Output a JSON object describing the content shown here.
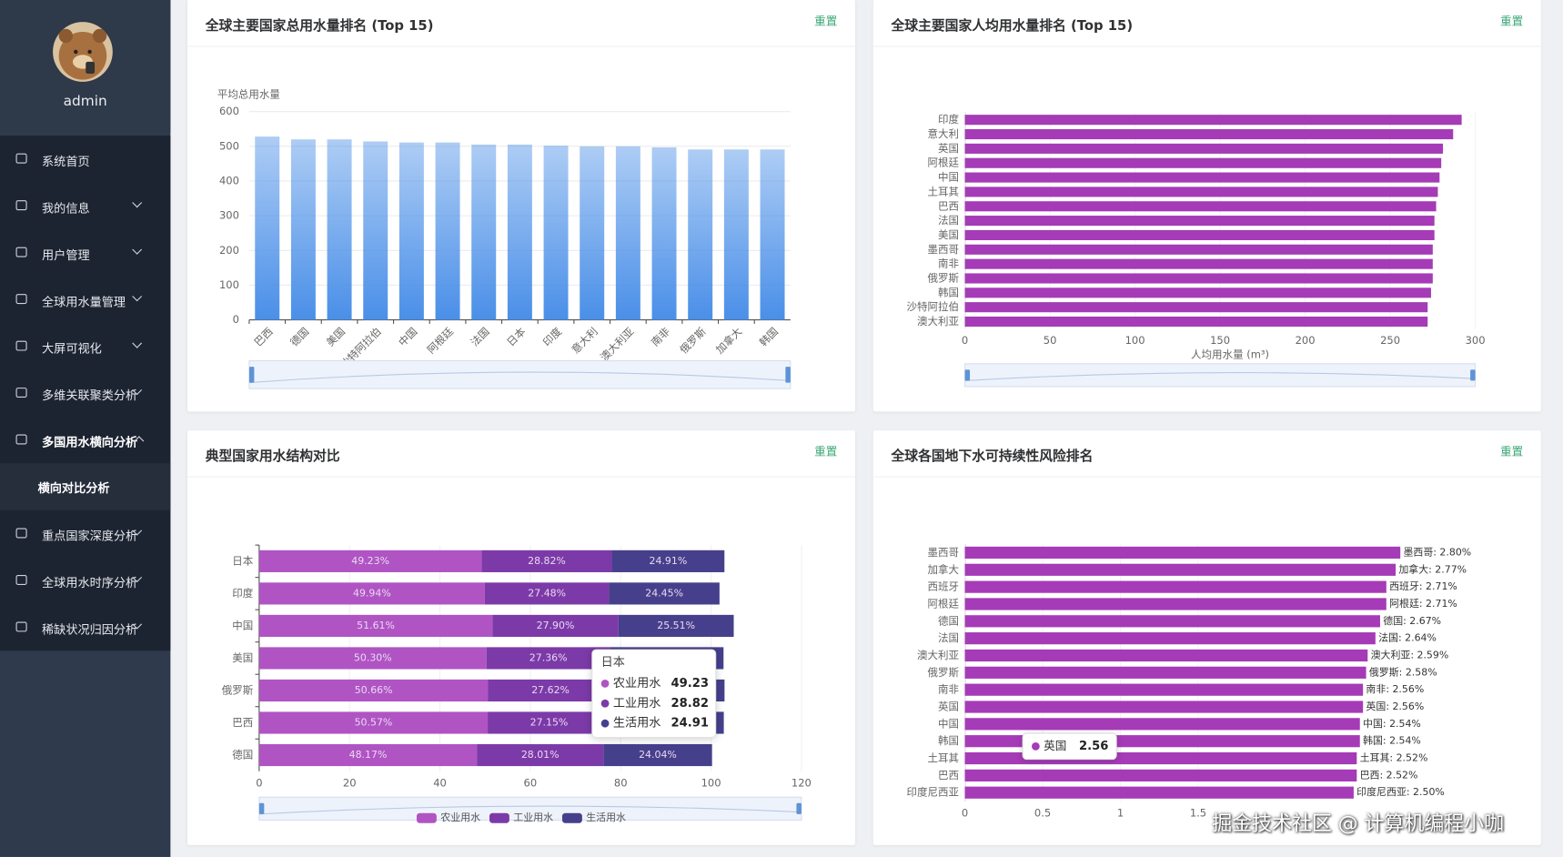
{
  "sidebar": {
    "user": "admin",
    "menu": [
      {
        "label": "系统首页"
      },
      {
        "label": "我的信息"
      },
      {
        "label": "用户管理"
      },
      {
        "label": "全球用水量管理"
      },
      {
        "label": "大屏可视化"
      },
      {
        "label": "多维关联聚类分析"
      },
      {
        "label": "多国用水横向分析",
        "sub": "横向对比分析"
      },
      {
        "label": "重点国家深度分析"
      },
      {
        "label": "全球用水时序分析"
      },
      {
        "label": "稀缺状况归因分析"
      }
    ]
  },
  "chart_data": [
    {
      "type": "bar",
      "title": "全球主要国家总用水量排名 (Top 15)",
      "reset": "重置",
      "y_name": "平均总用水量",
      "categories": [
        "巴西",
        "德国",
        "美国",
        "沙特阿拉伯",
        "中国",
        "阿根廷",
        "法国",
        "日本",
        "印度",
        "意大利",
        "澳大利亚",
        "南非",
        "俄罗斯",
        "加拿大",
        "韩国"
      ],
      "values": [
        528,
        520,
        520,
        514,
        511,
        511,
        505,
        505,
        502,
        500,
        500,
        497,
        491,
        491,
        491
      ],
      "color": "#4a8fe8",
      "ylim": [
        0,
        600
      ],
      "yticks": [
        0,
        100,
        200,
        300,
        400,
        500,
        600
      ],
      "grid": true
    },
    {
      "type": "hbar",
      "title": "全球主要国家人均用水量排名 (Top 15)",
      "reset": "重置",
      "x_label": "人均用水量 (m³)",
      "categories": [
        "印度",
        "意大利",
        "英国",
        "阿根廷",
        "中国",
        "土耳其",
        "巴西",
        "法国",
        "美国",
        "墨西哥",
        "南非",
        "俄罗斯",
        "韩国",
        "沙特阿拉伯",
        "澳大利亚"
      ],
      "values": [
        292,
        287,
        281,
        280,
        279,
        278,
        277,
        276,
        276,
        275,
        275,
        275,
        274,
        272,
        272
      ],
      "color": "#a53bb6",
      "xlim": [
        0,
        300
      ],
      "xticks": [
        0,
        50,
        100,
        150,
        200,
        250,
        300
      ]
    },
    {
      "type": "stackedbar",
      "title": "典型国家用水结构对比",
      "reset": "重置",
      "categories": [
        "日本",
        "印度",
        "中国",
        "美国",
        "俄罗斯",
        "巴西",
        "德国"
      ],
      "series": [
        {
          "name": "农业用水",
          "color": "#b054c4",
          "values": [
            49.23,
            49.94,
            51.61,
            50.3,
            50.66,
            50.57,
            48.17
          ],
          "value_labels": [
            "49.23%",
            "49.94%",
            "51.61%",
            "50.30%",
            "50.66%",
            "50.57%",
            "48.17%"
          ]
        },
        {
          "name": "工业用水",
          "color": "#7c3aa8",
          "values": [
            28.82,
            27.48,
            27.9,
            27.36,
            27.62,
            27.15,
            28.01
          ],
          "value_labels": [
            "28.82%",
            "27.48%",
            "27.90%",
            "27.36%",
            "27.62%",
            "27.15%",
            "28.01%"
          ]
        },
        {
          "name": "生活用水",
          "color": "#46408c",
          "values": [
            24.91,
            24.45,
            25.51,
            25.1,
            24.7,
            25.1,
            24.04
          ],
          "value_labels": [
            "24.91%",
            "24.45%",
            "25.51%",
            null,
            null,
            null,
            "24.04%"
          ]
        }
      ],
      "xlim": [
        0,
        120
      ],
      "xticks": [
        0,
        20,
        40,
        60,
        80,
        100,
        120
      ],
      "legend": "bottom",
      "tooltip": {
        "title": "日本",
        "rows": [
          {
            "name": "农业用水",
            "value": 49.23
          },
          {
            "name": "工业用水",
            "value": 28.82
          },
          {
            "name": "生活用水",
            "value": 24.91
          }
        ]
      }
    },
    {
      "type": "hbar",
      "title": "全球各国地下水可持续性风险排名",
      "reset": "重置",
      "categories": [
        "墨西哥",
        "加拿大",
        "西班牙",
        "阿根廷",
        "德国",
        "法国",
        "澳大利亚",
        "俄罗斯",
        "南非",
        "英国",
        "中国",
        "韩国",
        "土耳其",
        "巴西",
        "印度尼西亚"
      ],
      "values": [
        2.8,
        2.77,
        2.71,
        2.71,
        2.67,
        2.64,
        2.59,
        2.58,
        2.56,
        2.56,
        2.54,
        2.54,
        2.52,
        2.52,
        2.5
      ],
      "value_labels": [
        "墨西哥: 2.80%",
        "加拿大: 2.77%",
        "西班牙: 2.71%",
        "阿根廷: 2.71%",
        "德国: 2.67%",
        "法国: 2.64%",
        "澳大利亚: 2.59%",
        "俄罗斯: 2.58%",
        "南非: 2.56%",
        "英国: 2.56%",
        "中国: 2.54%",
        "韩国: 2.54%",
        "土耳其: 2.52%",
        "巴西: 2.52%",
        "印度尼西亚: 2.50%"
      ],
      "color": "#a53bb6",
      "xlim": [
        0,
        3
      ],
      "xticks": [
        0,
        0.5,
        1,
        1.5
      ],
      "tooltip": {
        "name": "英国",
        "value": 2.56
      }
    }
  ],
  "watermark": "掘金技术社区 @ 计算机编程小咖"
}
